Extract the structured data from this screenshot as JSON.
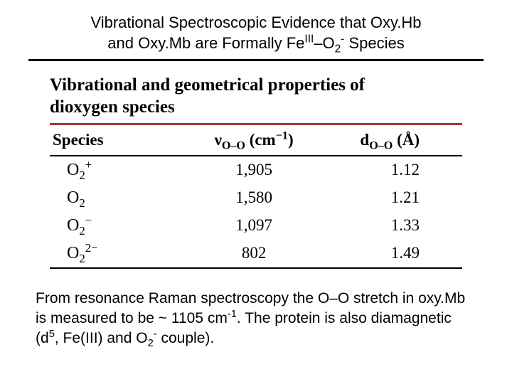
{
  "title_line1": "Vibrational Spectroscopic Evidence that Oxy.Hb",
  "title_line2_a": "and Oxy.Mb are Formally Fe",
  "title_line2_sup": "III",
  "title_line2_b": "–O",
  "title_line2_sub1": "2",
  "title_line2_sup2": "-",
  "title_line2_c": " Species",
  "table_title_l1": "Vibrational and geometrical properties of",
  "table_title_l2": "dioxygen species",
  "headers": {
    "species": "Species",
    "nu_prefix": "ν",
    "nu_sub": "O–O",
    "nu_unit_a": " (cm",
    "nu_unit_sup": "−1",
    "nu_unit_b": ")",
    "d_prefix": "d",
    "d_sub": "O–O",
    "d_unit": " (Å)"
  },
  "rows": [
    {
      "label": "O",
      "sub": "2",
      "sup": "+",
      "nu": "1,905",
      "d": "1.12"
    },
    {
      "label": "O",
      "sub": "2",
      "sup": "",
      "nu": "1,580",
      "d": "1.21"
    },
    {
      "label": "O",
      "sub": "2",
      "sup": "−",
      "nu": "1,097",
      "d": "1.33"
    },
    {
      "label": "O",
      "sub": "2",
      "sup": "2−",
      "nu": "802",
      "d": "1.49"
    }
  ],
  "caption_a": "From resonance Raman spectroscopy the O–O stretch in oxy.Mb is measured to be ~ 1105 cm",
  "caption_sup1": "-1",
  "caption_b": ". The protein is also diamagnetic (d",
  "caption_sup2": "5",
  "caption_c": ", Fe(III) and O",
  "caption_sub1": "2",
  "caption_sup3": "-",
  "caption_d": " couple).",
  "colors": {
    "rule_red": "#a83a2a",
    "rule_black": "#000000",
    "bg": "#ffffff",
    "text": "#000000"
  }
}
